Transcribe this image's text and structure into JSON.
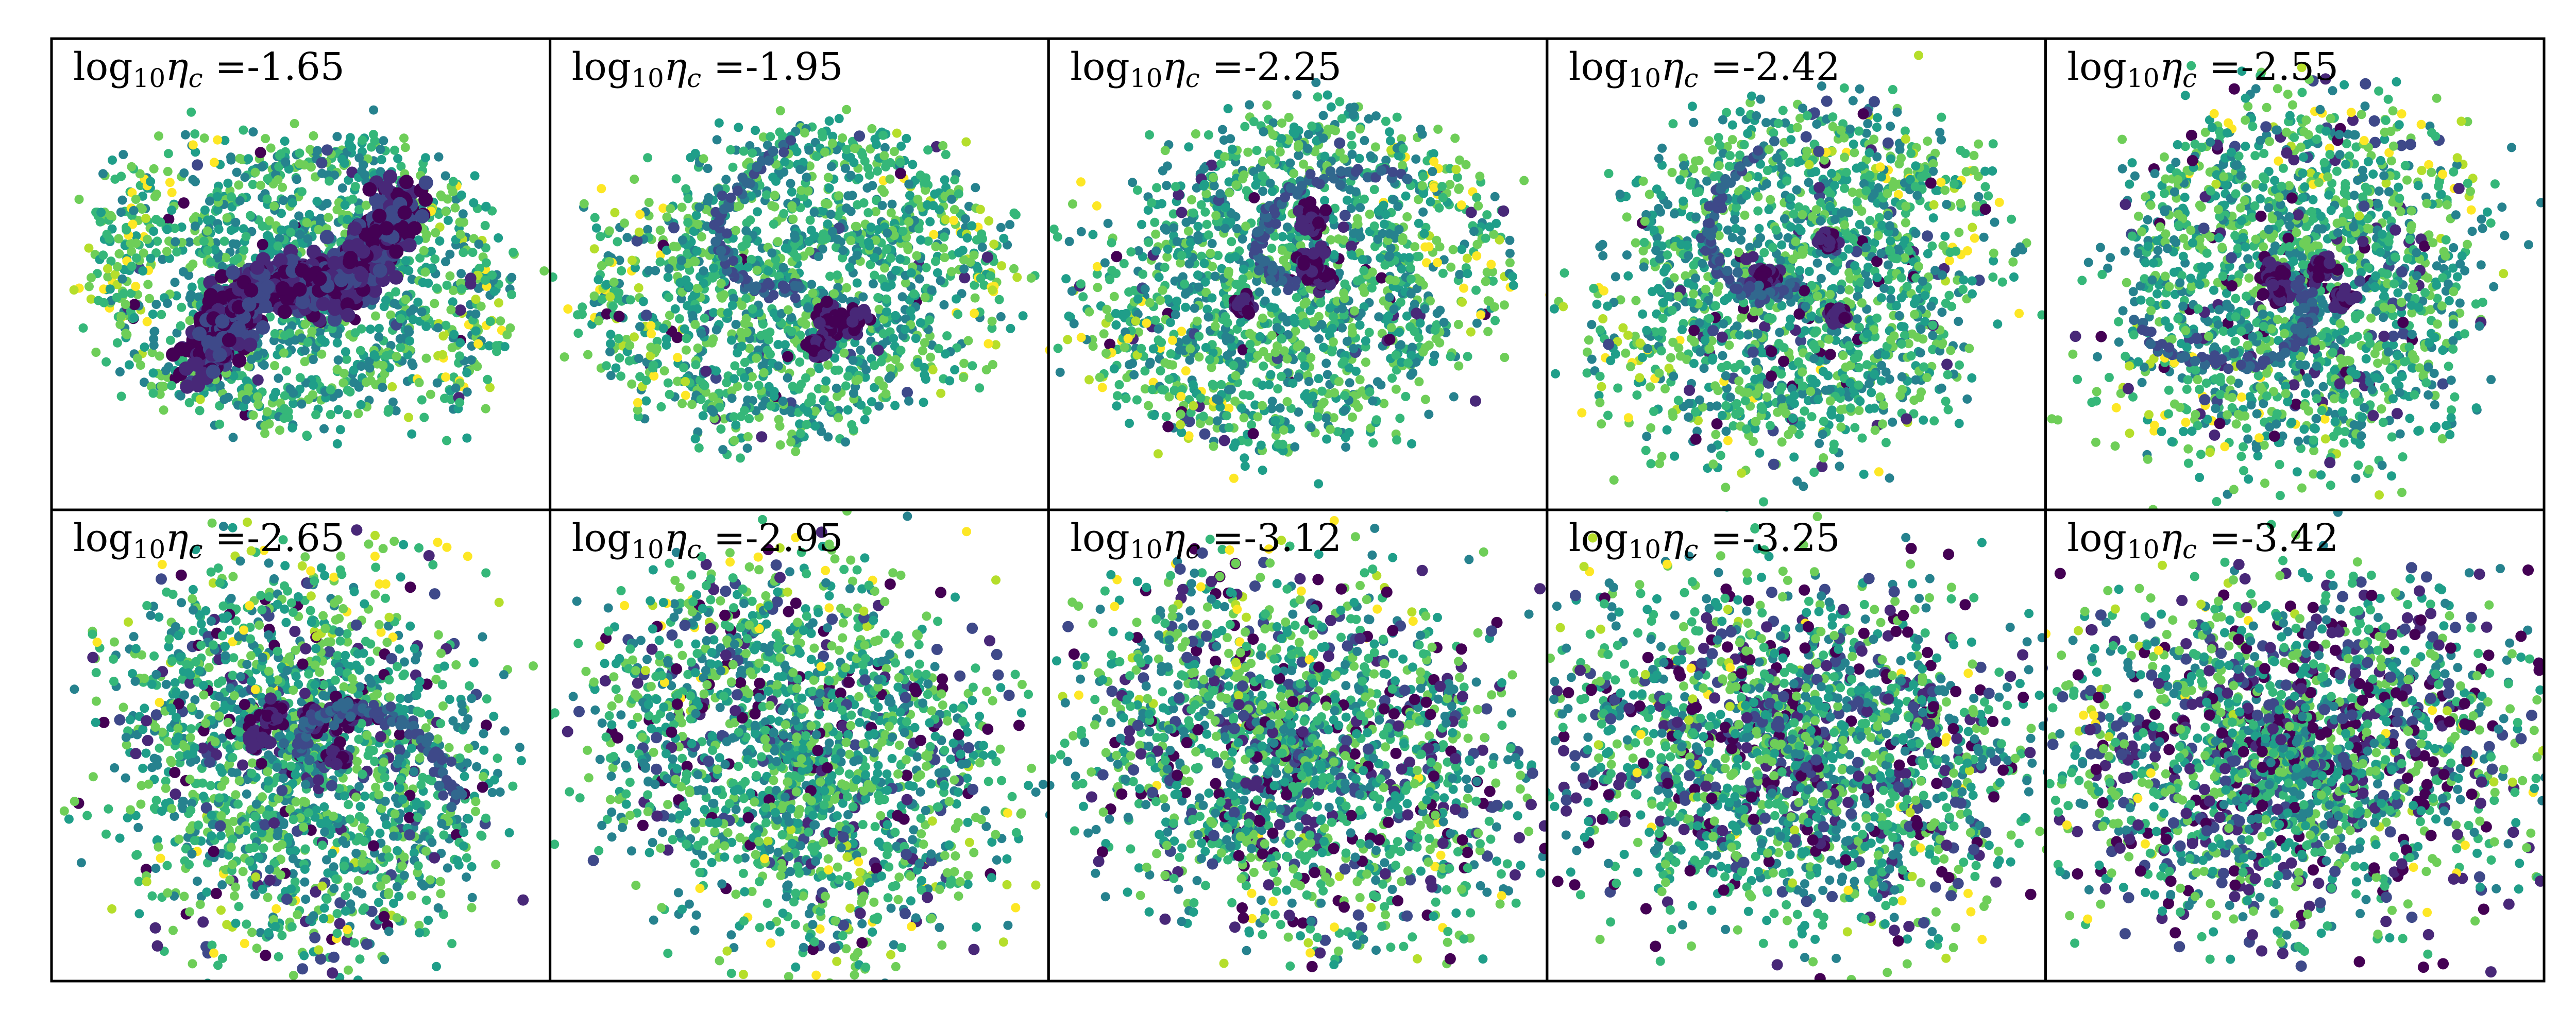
{
  "chart_data": {
    "type": "scatter",
    "layout": {
      "rows": 2,
      "cols": 5
    },
    "grid": false,
    "axes": "hidden",
    "colormap": "viridis",
    "colors": {
      "viridis": [
        "#440154",
        "#482878",
        "#3e4989",
        "#31688e",
        "#26828e",
        "#1f9e89",
        "#35b779",
        "#6ece58",
        "#b5de2b",
        "#fde725"
      ],
      "frame": "#000000",
      "background": "#ffffff"
    },
    "panels": [
      {
        "label_prefix": "log",
        "label_sub": "10",
        "label_symbol": "η",
        "label_symbol_sub": "c",
        "label_value": " =-1.65",
        "log10_eta_c": -1.65,
        "morphology": "smooth two-armed spiral ring with dense dark central bar"
      },
      {
        "label_prefix": "log",
        "label_sub": "10",
        "label_symbol": "η",
        "label_symbol_sub": "c",
        "label_value": " =-1.95",
        "log10_eta_c": -1.95,
        "morphology": "spiral ring with dark arm and four dense clumps"
      },
      {
        "label_prefix": "log",
        "label_sub": "10",
        "label_symbol": "η",
        "label_symbol_sub": "c",
        "label_value": " =-2.25",
        "log10_eta_c": -2.25,
        "morphology": "fragmented spiral with several dense clumps"
      },
      {
        "label_prefix": "log",
        "label_sub": "10",
        "label_symbol": "η",
        "label_symbol_sub": "c",
        "label_value": " =-2.42",
        "log10_eta_c": -2.42,
        "morphology": "fragmented spiral with dense clumps and curved filament"
      },
      {
        "label_prefix": "log",
        "label_sub": "10",
        "label_symbol": "η",
        "label_symbol_sub": "c",
        "label_value": " =-2.55",
        "log10_eta_c": -2.55,
        "morphology": "S-shaped filament with scattered clumps"
      },
      {
        "label_prefix": "log",
        "label_sub": "10",
        "label_symbol": "η",
        "label_symbol_sub": "c",
        "label_value": " =-2.65",
        "log10_eta_c": -2.65,
        "morphology": "S-shaped filament with long tail and clumps"
      },
      {
        "label_prefix": "log",
        "label_sub": "10",
        "label_symbol": "η",
        "label_symbol_sub": "c",
        "label_value": " =-2.95",
        "log10_eta_c": -2.95,
        "morphology": "irregular S-shaped distribution with many dark points"
      },
      {
        "label_prefix": "log",
        "label_sub": "10",
        "label_symbol": "η",
        "label_symbol_sub": "c",
        "label_value": " =-3.12",
        "log10_eta_c": -3.12,
        "morphology": "diffuse S-shaped distribution with scattered dark points"
      },
      {
        "label_prefix": "log",
        "label_sub": "10",
        "label_symbol": "η",
        "label_symbol_sub": "c",
        "label_value": " =-3.25",
        "log10_eta_c": -3.25,
        "morphology": "diffuse distribution with dark central concentration"
      },
      {
        "label_prefix": "log",
        "label_sub": "10",
        "label_symbol": "η",
        "label_symbol_sub": "c",
        "label_value": " =-3.42",
        "log10_eta_c": -3.42,
        "morphology": "diffuse blob dominated by dark points"
      }
    ]
  }
}
